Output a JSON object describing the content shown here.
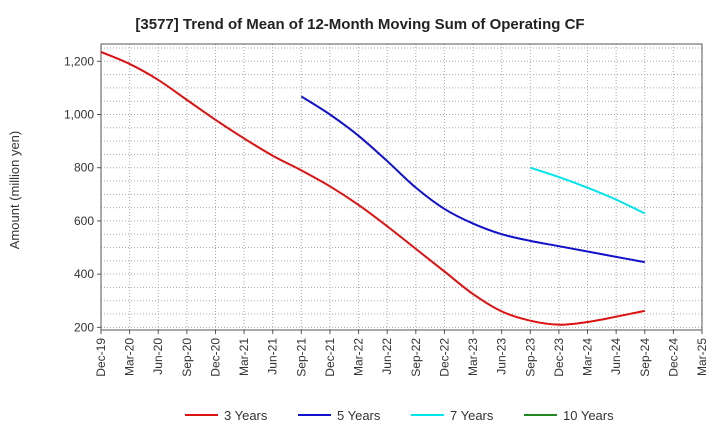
{
  "chart_data": {
    "type": "line",
    "title": "[3577]  Trend of Mean of 12-Month Moving Sum of Operating CF",
    "xlabel": "",
    "ylabel": "Amount (million yen)",
    "ylim": [
      190,
      1265
    ],
    "yticks": [
      200,
      400,
      600,
      800,
      "1,000",
      "1,200"
    ],
    "ytick_values": [
      200,
      400,
      600,
      800,
      1000,
      1200
    ],
    "categories": [
      "Dec-19",
      "Mar-20",
      "Jun-20",
      "Sep-20",
      "Dec-20",
      "Mar-21",
      "Jun-21",
      "Sep-21",
      "Dec-21",
      "Mar-22",
      "Jun-22",
      "Sep-22",
      "Dec-22",
      "Mar-23",
      "Jun-23",
      "Sep-23",
      "Dec-23",
      "Mar-24",
      "Jun-24",
      "Sep-24",
      "Dec-24",
      "Mar-25"
    ],
    "grid": true,
    "legend_position": "bottom",
    "series": [
      {
        "name": "3 Years",
        "color": "#dd1111",
        "values": [
          1235,
          1190,
          1130,
          1055,
          980,
          910,
          845,
          790,
          730,
          660,
          580,
          495,
          410,
          325,
          260,
          225,
          210,
          220,
          240,
          262,
          null,
          null
        ]
      },
      {
        "name": "5 Years",
        "color": "#1111cc",
        "values": [
          null,
          null,
          null,
          null,
          null,
          null,
          null,
          1068,
          1000,
          920,
          825,
          725,
          645,
          590,
          550,
          525,
          505,
          485,
          465,
          445,
          null,
          null
        ]
      },
      {
        "name": "7 Years",
        "color": "#00e5ee",
        "values": [
          null,
          null,
          null,
          null,
          null,
          null,
          null,
          null,
          null,
          null,
          null,
          null,
          null,
          null,
          null,
          800,
          765,
          725,
          680,
          628,
          null,
          null
        ]
      },
      {
        "name": "10 Years",
        "color": "#228822",
        "values": [
          null,
          null,
          null,
          null,
          null,
          null,
          null,
          null,
          null,
          null,
          null,
          null,
          null,
          null,
          null,
          null,
          null,
          null,
          null,
          null,
          null,
          null
        ]
      }
    ]
  }
}
